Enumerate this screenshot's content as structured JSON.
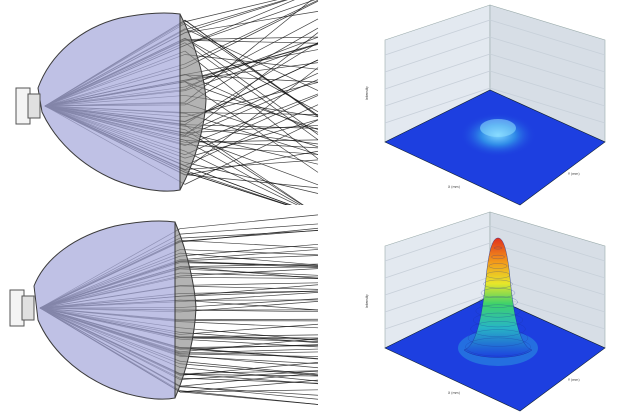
{
  "figure": {
    "colors": {
      "reflector_fill": "#a9acdc",
      "reflector_edge": "#3a3a3a",
      "lens_fill": "#8a8a8a",
      "ray_color": "#111111",
      "plot_floor": "#1d3fe0",
      "plot_wall": "#dde6ee"
    },
    "panels": [
      {
        "id": "top-left",
        "kind": "ray-trace",
        "mode": "diverging"
      },
      {
        "id": "bottom-left",
        "kind": "ray-trace",
        "mode": "collimated"
      },
      {
        "id": "top-right",
        "kind": "intensity-surface",
        "peak": "low-broad",
        "z_axis_label": "Intensity",
        "x_axis_label": "X (mm)",
        "y_axis_label": "Y (mm)"
      },
      {
        "id": "bottom-right",
        "kind": "intensity-surface",
        "peak": "high-narrow",
        "z_axis_label": "Intensity",
        "x_axis_label": "X (mm)",
        "y_axis_label": "Y (mm)"
      }
    ]
  }
}
